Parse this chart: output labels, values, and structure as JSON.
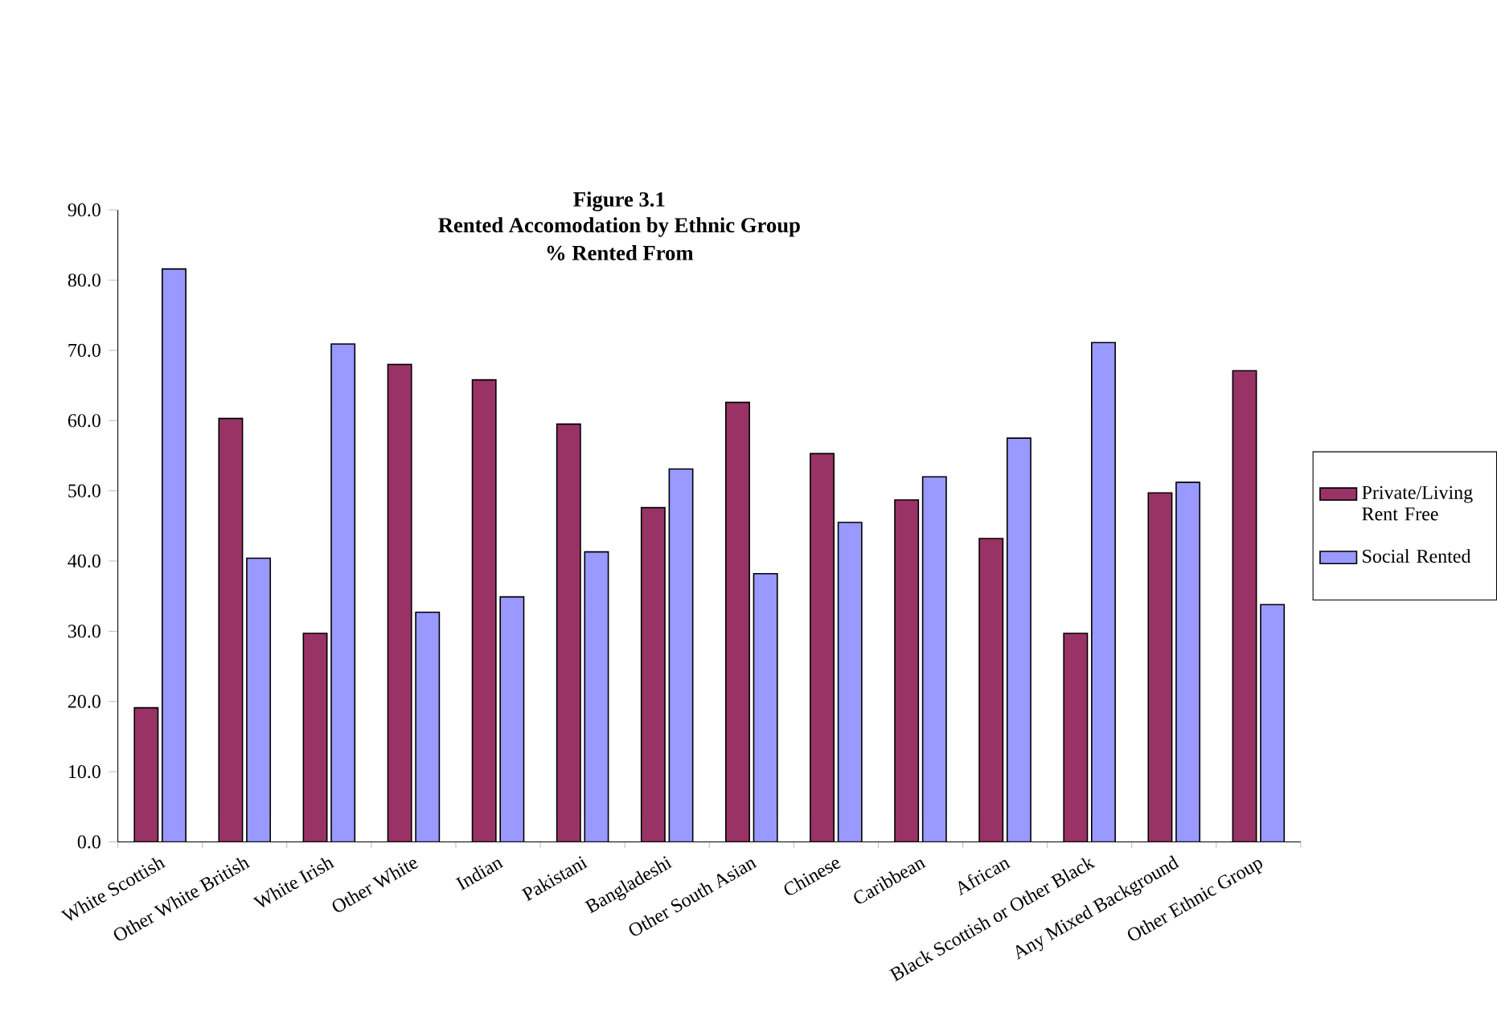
{
  "chart_data": {
    "type": "bar",
    "title": "Figure 3.1",
    "subtitle": "Rented Accomodation by Ethnic Group",
    "annotations": [
      "% Rented From"
    ],
    "categories": [
      "White Scottish",
      "Other White British",
      "White Irish",
      "Other White",
      "Indian",
      "Pakistani",
      "Bangladeshi",
      "Other South Asian",
      "Chinese",
      "Caribbean",
      "African",
      "Black Scottish or Other Black",
      "Any Mixed Background",
      "Other Ethnic Group"
    ],
    "series": [
      {
        "name": "Private/Living Rent Free",
        "color": "#993366",
        "values": [
          19.1,
          60.3,
          29.7,
          68.0,
          65.8,
          59.5,
          47.6,
          62.6,
          55.3,
          48.7,
          43.2,
          29.7,
          49.7,
          67.1
        ]
      },
      {
        "name": "Social Rented",
        "color": "#9999ff",
        "values": [
          81.6,
          40.4,
          70.9,
          32.7,
          34.9,
          41.3,
          53.1,
          38.2,
          45.5,
          52.0,
          57.5,
          71.1,
          51.2,
          33.8
        ]
      }
    ],
    "ylim": [
      0,
      90
    ],
    "yticks": [
      {
        "value": 0,
        "label": "0.0"
      },
      {
        "value": 10,
        "label": "10.0"
      },
      {
        "value": 20,
        "label": "20.0"
      },
      {
        "value": 30,
        "label": "30.0"
      },
      {
        "value": 40,
        "label": "40.0"
      },
      {
        "value": 50,
        "label": "50.0"
      },
      {
        "value": 60,
        "label": "60.0"
      },
      {
        "value": 70,
        "label": "70.0"
      },
      {
        "value": 80,
        "label": "80.0"
      },
      {
        "value": 90,
        "label": "90.0"
      }
    ],
    "legend": "right",
    "grid": false
  }
}
